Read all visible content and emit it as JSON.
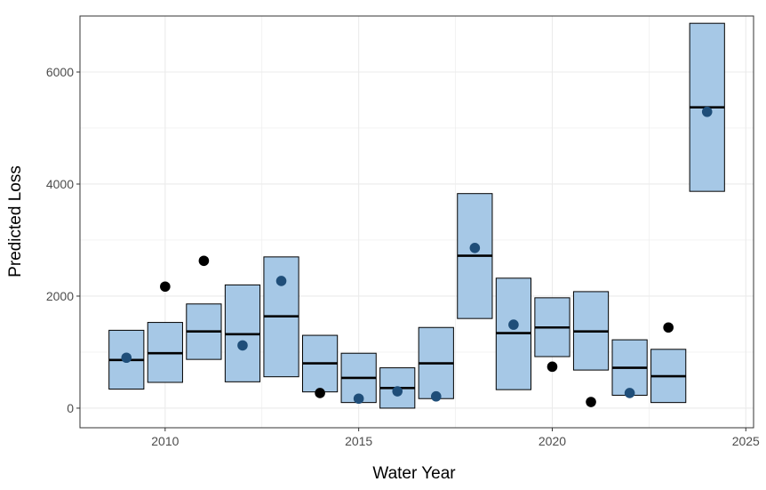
{
  "chart_data": {
    "type": "box-with-points",
    "xlabel": "Water Year",
    "ylabel": "Predicted Loss",
    "xlim": [
      2007.8,
      2025.2
    ],
    "ylim": [
      -350,
      7000
    ],
    "x_ticks": [
      2010,
      2015,
      2020,
      2025
    ],
    "y_ticks": [
      0,
      2000,
      4000,
      6000
    ],
    "x_tick_labels": [
      "2010",
      "2015",
      "2020",
      "2025"
    ],
    "y_tick_labels": [
      "0",
      "2000",
      "4000",
      "6000"
    ],
    "grid": true,
    "legend": "none",
    "colors": {
      "box_fill": "#a6c8e6",
      "box_stroke": "#000000",
      "median": "#000000",
      "point": "#000000",
      "point_inside_box": "#1f4e79",
      "grid": "#ebebeb",
      "panel_border": "#333333"
    },
    "boxes": [
      {
        "year": 2009,
        "low": 340,
        "median": 860,
        "high": 1390
      },
      {
        "year": 2010,
        "low": 460,
        "median": 980,
        "high": 1530
      },
      {
        "year": 2011,
        "low": 870,
        "median": 1370,
        "high": 1860
      },
      {
        "year": 2012,
        "low": 470,
        "median": 1320,
        "high": 2200
      },
      {
        "year": 2013,
        "low": 560,
        "median": 1640,
        "high": 2700
      },
      {
        "year": 2014,
        "low": 290,
        "median": 800,
        "high": 1300
      },
      {
        "year": 2015,
        "low": 100,
        "median": 540,
        "high": 980
      },
      {
        "year": 2016,
        "low": 0,
        "median": 360,
        "high": 720
      },
      {
        "year": 2017,
        "low": 170,
        "median": 800,
        "high": 1440
      },
      {
        "year": 2018,
        "low": 1600,
        "median": 2720,
        "high": 3830
      },
      {
        "year": 2019,
        "low": 330,
        "median": 1340,
        "high": 2320
      },
      {
        "year": 2020,
        "low": 920,
        "median": 1440,
        "high": 1970
      },
      {
        "year": 2021,
        "low": 680,
        "median": 1370,
        "high": 2080
      },
      {
        "year": 2022,
        "low": 230,
        "median": 720,
        "high": 1220
      },
      {
        "year": 2023,
        "low": 100,
        "median": 570,
        "high": 1050
      },
      {
        "year": 2024,
        "low": 3870,
        "median": 5370,
        "high": 6870
      }
    ],
    "points": [
      {
        "year": 2009,
        "value": 900
      },
      {
        "year": 2010,
        "value": 2170
      },
      {
        "year": 2011,
        "value": 2630
      },
      {
        "year": 2012,
        "value": 1120
      },
      {
        "year": 2013,
        "value": 2270
      },
      {
        "year": 2014,
        "value": 270
      },
      {
        "year": 2015,
        "value": 170
      },
      {
        "year": 2016,
        "value": 300
      },
      {
        "year": 2017,
        "value": 210
      },
      {
        "year": 2018,
        "value": 2860
      },
      {
        "year": 2019,
        "value": 1490
      },
      {
        "year": 2020,
        "value": 740
      },
      {
        "year": 2021,
        "value": 110
      },
      {
        "year": 2022,
        "value": 270
      },
      {
        "year": 2023,
        "value": 1440
      },
      {
        "year": 2024,
        "value": 5290
      }
    ]
  }
}
